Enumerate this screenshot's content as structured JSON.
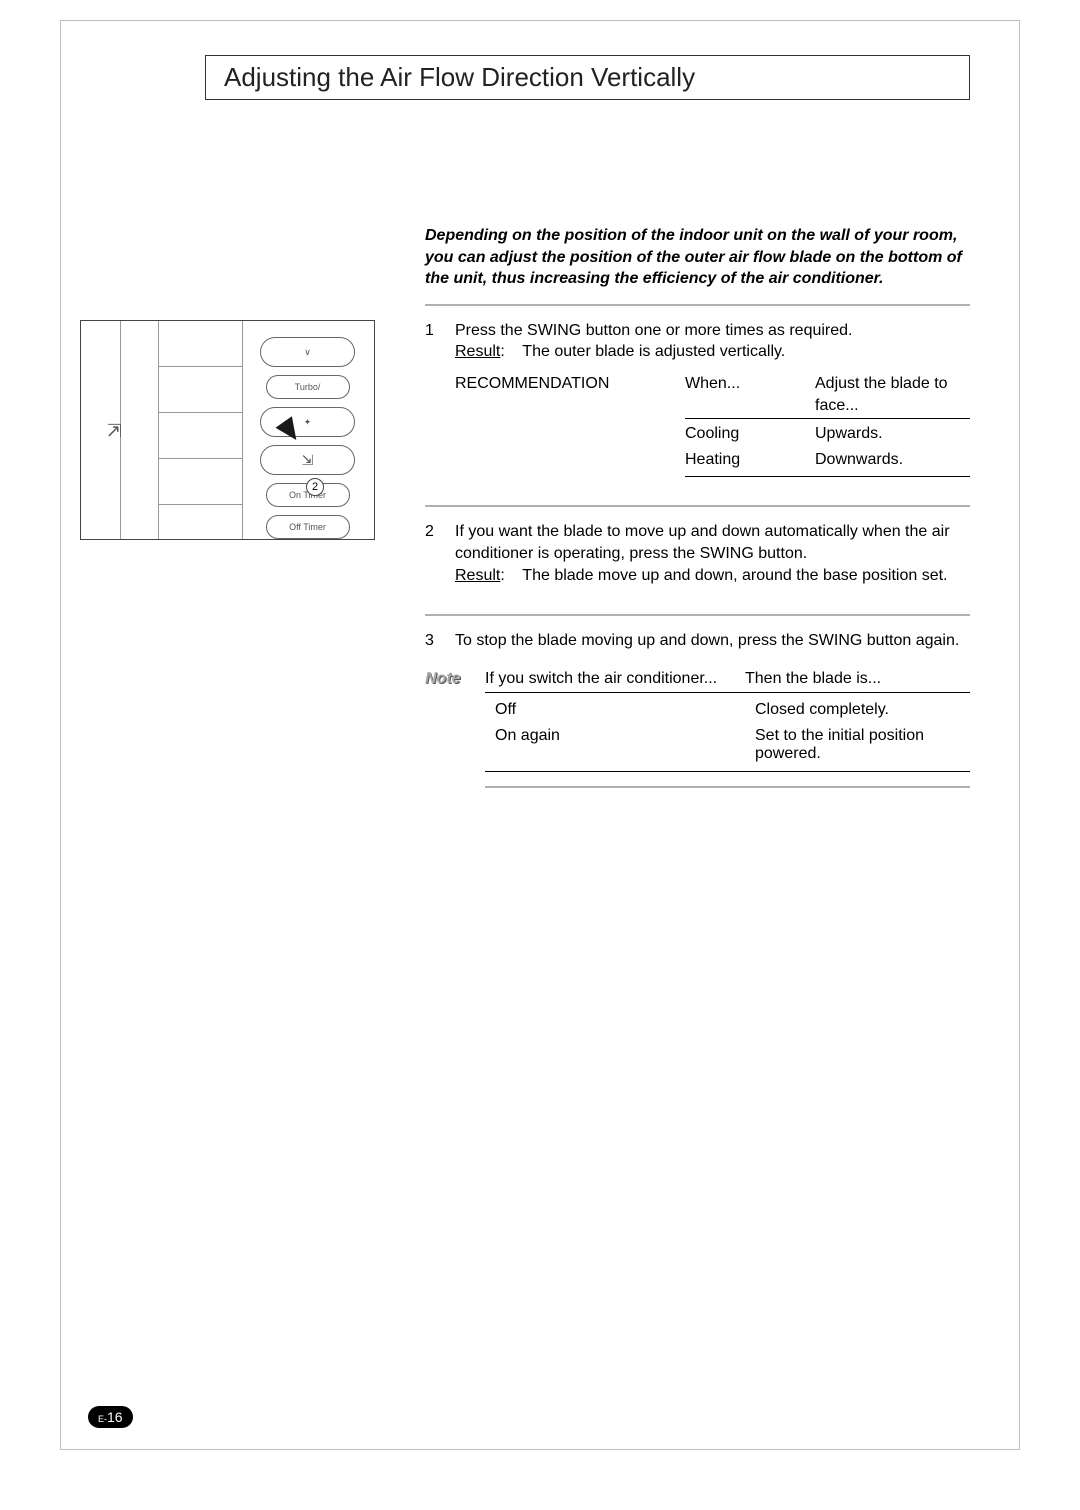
{
  "title": "Adjusting the Air Flow Direction Vertically",
  "intro": "Depending on the position of the indoor unit on the wall of your room, you can adjust the position of the outer air flow blade on the bottom of the unit, thus increasing the efficiency of the air conditioner.",
  "steps": [
    {
      "num": "1",
      "text": "Press the SWING button one or more times as required.",
      "result_label": "Result",
      "result_text": "The outer blade is adjusted vertically.",
      "rec_label": "RECOMMENDATION",
      "rec_header": {
        "c1": "When...",
        "c2": "Adjust the blade to face..."
      },
      "rec_rows": [
        {
          "c1": "Cooling",
          "c2": "Upwards."
        },
        {
          "c1": "Heating",
          "c2": "Downwards."
        }
      ]
    },
    {
      "num": "2",
      "text": "If you want the blade to move up and down automatically when the air conditioner is operating, press the SWING button.",
      "result_label": "Result",
      "result_text": "The blade move up and down, around the base position set."
    },
    {
      "num": "3",
      "text": "To stop the blade moving up and down, press the SWING button again."
    }
  ],
  "note": {
    "label": "Note",
    "header": {
      "c1": "If you switch the air conditioner...",
      "c2": "Then the blade is..."
    },
    "rows": [
      {
        "c1": "Off",
        "c2": "Closed completely."
      },
      {
        "c1": "On again",
        "c2": "Set to the initial position powered."
      }
    ]
  },
  "remote": {
    "buttons": [
      "∨",
      "Turbo/",
      "✦",
      "⇲",
      "On Timer",
      "Off Timer"
    ],
    "swing_side_icon": "⇲",
    "callouts": [
      "2"
    ]
  },
  "page_number": {
    "prefix": "E-",
    "num": "16"
  },
  "colors": {
    "border_gray": "#bfbfbf",
    "sep_gray": "#b0b0b0",
    "text": "#000000"
  }
}
